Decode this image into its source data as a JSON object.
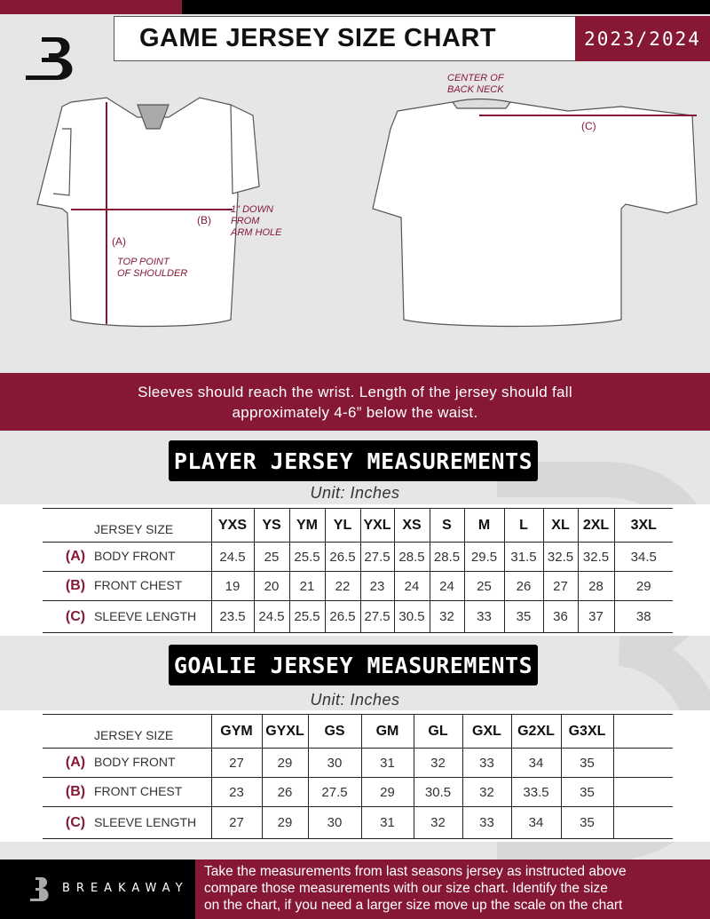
{
  "header": {
    "title": "GAME JERSEY SIZE CHART",
    "season": "2023/2024",
    "brand_color": "#861836"
  },
  "diagram": {
    "center_back_neck": [
      "CENTER OF",
      "BACK NECK"
    ],
    "label_c": "(C)",
    "label_b": "(B)",
    "one_inch_down": [
      "1\" DOWN",
      "FROM",
      "ARM HOLE"
    ],
    "label_a": "(A)",
    "top_point": [
      "TOP POINT",
      "OF SHOULDER"
    ]
  },
  "banner": {
    "line1": "Sleeves should reach the wrist. Length of the jersey should fall",
    "line2": "approximately 4-6” below the waist."
  },
  "player": {
    "title": "PLAYER JERSEY MEASUREMENTS",
    "unit": "Unit: Inches",
    "size_label": "JERSEY SIZE",
    "sizes": [
      "YXS",
      "YS",
      "YM",
      "YL",
      "YXL",
      "XS",
      "S",
      "M",
      "L",
      "XL",
      "2XL",
      "3XL"
    ],
    "rows": [
      {
        "key": "(A)",
        "label": "BODY FRONT",
        "values": [
          "24.5",
          "25",
          "25.5",
          "26.5",
          "27.5",
          "28.5",
          "28.5",
          "29.5",
          "31.5",
          "32.5",
          "32.5",
          "34.5"
        ]
      },
      {
        "key": "(B)",
        "label": "FRONT CHEST",
        "values": [
          "19",
          "20",
          "21",
          "22",
          "23",
          "24",
          "24",
          "25",
          "26",
          "27",
          "28",
          "29"
        ]
      },
      {
        "key": "(C)",
        "label": "SLEEVE LENGTH",
        "values": [
          "23.5",
          "24.5",
          "25.5",
          "26.5",
          "27.5",
          "30.5",
          "32",
          "33",
          "35",
          "36",
          "37",
          "38"
        ]
      }
    ]
  },
  "goalie": {
    "title": "GOALIE JERSEY MEASUREMENTS",
    "unit": "Unit: Inches",
    "size_label": "JERSEY SIZE",
    "sizes": [
      "GYM",
      "GYXL",
      "GS",
      "GM",
      "GL",
      "GXL",
      "G2XL",
      "G3XL",
      ""
    ],
    "rows": [
      {
        "key": "(A)",
        "label": "BODY FRONT",
        "values": [
          "27",
          "29",
          "30",
          "31",
          "32",
          "33",
          "34",
          "35",
          ""
        ]
      },
      {
        "key": "(B)",
        "label": "FRONT CHEST",
        "values": [
          "23",
          "26",
          "27.5",
          "29",
          "30.5",
          "32",
          "33.5",
          "35",
          ""
        ]
      },
      {
        "key": "(C)",
        "label": "SLEEVE LENGTH",
        "values": [
          "27",
          "29",
          "30",
          "31",
          "32",
          "33",
          "34",
          "35",
          ""
        ]
      }
    ]
  },
  "footer": {
    "brand": "BREAKAWAY",
    "text": [
      "Take the measurements from last seasons jersey as instructed above",
      "compare those measurements  with our size chart. Identify the size",
      "on the chart, if you need a larger size move up the scale on the chart"
    ]
  }
}
